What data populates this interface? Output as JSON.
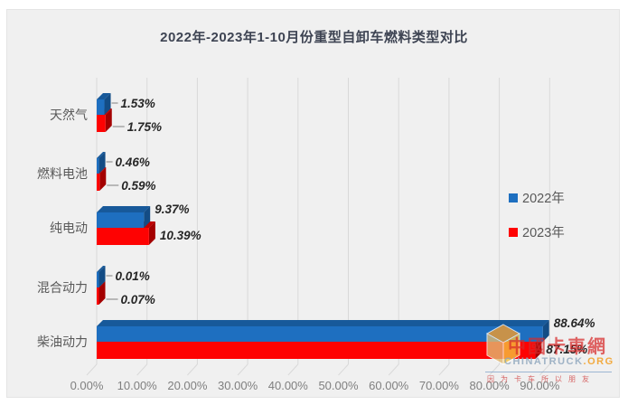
{
  "title": "2022年-2023年1-10月份重型自卸车燃料类型对比",
  "chart_data": {
    "type": "bar",
    "orientation": "horizontal",
    "style": "3d",
    "title": "2022年-2023年1-10月份重型自卸车燃料类型对比",
    "categories": [
      "天然气",
      "燃料电池",
      "纯电动",
      "混合动力",
      "柴油动力"
    ],
    "series": [
      {
        "name": "2022年",
        "color": "#1E6FC0",
        "values": [
          1.53,
          0.46,
          9.37,
          0.01,
          88.64
        ],
        "labels": [
          "1.53%",
          "0.46%",
          "9.37%",
          "0.01%",
          "88.64%"
        ]
      },
      {
        "name": "2023年",
        "color": "#FE0202",
        "values": [
          1.75,
          0.59,
          10.39,
          0.07,
          87.15
        ],
        "labels": [
          "1.75%",
          "0.59%",
          "10.39%",
          "0.07%",
          "87.15%"
        ]
      }
    ],
    "xlabel": "",
    "ylabel": "",
    "xlim": [
      0,
      100
    ],
    "x_ticks": [
      "0.00%",
      "10.00%",
      "20.00%",
      "30.00%",
      "40.00%",
      "50.00%",
      "60.00%",
      "70.00%",
      "80.00%",
      "90.00%"
    ],
    "grid": true,
    "legend_position": "right-middle"
  },
  "legend": {
    "items": [
      {
        "label": "2022年",
        "color": "#1E6FC0"
      },
      {
        "label": "2023年",
        "color": "#FE0202"
      }
    ]
  },
  "watermark": {
    "brand_cn": "中國卡車網",
    "brand_en": "CHINATRUCK",
    "brand_tld": ".ORG",
    "slogan": "因为卡车所以朋友"
  },
  "colors": {
    "blue_front": "#1E6FC0",
    "blue_top": "#17599A",
    "blue_side": "#134C85",
    "red_front": "#FE0202",
    "red_top": "#C00000",
    "red_side": "#A40000",
    "gridline": "#d9d9d9",
    "panel_bg": "#f0f0f0"
  }
}
